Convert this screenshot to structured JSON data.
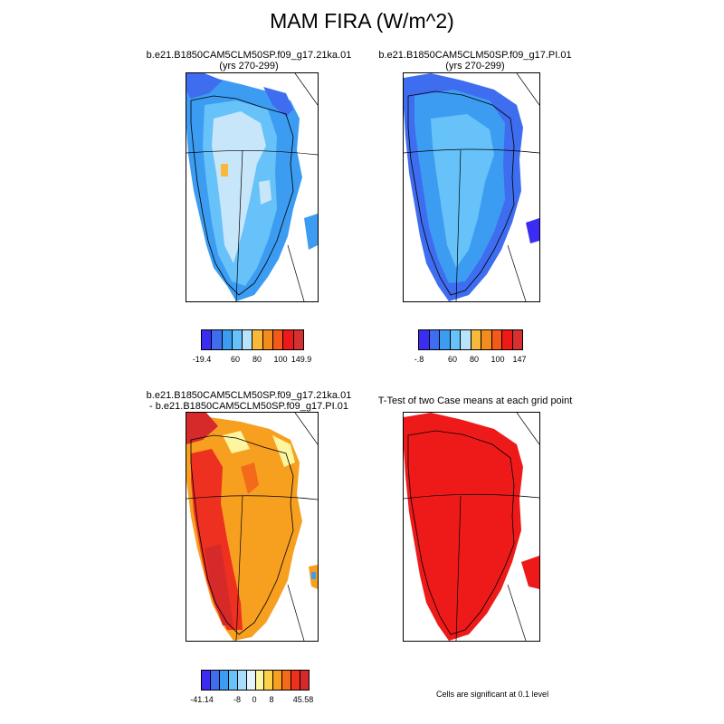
{
  "title": "MAM FIRA (W/m^2)",
  "panels": [
    {
      "id": "p1",
      "title_lines": [
        "b.e21.B1850CAM5CLM50SP.f09_g17.21ka.01",
        "(yrs 270-299)"
      ],
      "colorbar": {
        "colors": [
          "#3a2cf2",
          "#3f6df0",
          "#3c9cf2",
          "#66c2f8",
          "#b8e4fb",
          "#f7b83b",
          "#f38c1e",
          "#f35a1a",
          "#ee1a1a",
          "#d63030"
        ],
        "labels": [
          "-19.4",
          "60",
          "80",
          "100",
          "149.9"
        ]
      }
    },
    {
      "id": "p2",
      "title_lines": [
        "b.e21.B1850CAM5CLM50SP.f09_g17.PI.01",
        "(yrs 270-299)"
      ],
      "colorbar": {
        "colors": [
          "#3a2cf2",
          "#3f6df0",
          "#3c9cf2",
          "#66c2f8",
          "#b8e4fb",
          "#f7b83b",
          "#f38c1e",
          "#f35a1a",
          "#ee1a1a",
          "#d63030"
        ],
        "labels": [
          "-.8",
          "60",
          "80",
          "100",
          "147"
        ]
      }
    },
    {
      "id": "p3",
      "title_lines": [
        "b.e21.B1850CAM5CLM50SP.f09_g17.21ka.01",
        "- b.e21.B1850CAM5CLM50SP.f09_g17.PI.01"
      ],
      "colorbar": {
        "colors": [
          "#3a2cf2",
          "#3f6df0",
          "#3c9cf2",
          "#66c2f8",
          "#a8dcf8",
          "#e4f4fb",
          "#fdf5a0",
          "#fbd24a",
          "#f7a020",
          "#f36a1a",
          "#ee3020",
          "#d62a2a"
        ],
        "labels": [
          "-41.14",
          "-8",
          "0",
          "8",
          "45.58"
        ]
      }
    },
    {
      "id": "p4",
      "title_lines": [
        "T-Test of two Case means at each grid point"
      ],
      "note": "Cells are significant at 0.1 level"
    }
  ],
  "colors": {
    "ice_light": "#c7e6fa",
    "ice_mid": "#66c2f8",
    "blue": "#3c9cf2",
    "deep_blue": "#3a2cf2",
    "orange": "#f7a020",
    "dark_orange": "#f36a1a",
    "red": "#ee1a1a",
    "yellow": "#f7b83b"
  }
}
